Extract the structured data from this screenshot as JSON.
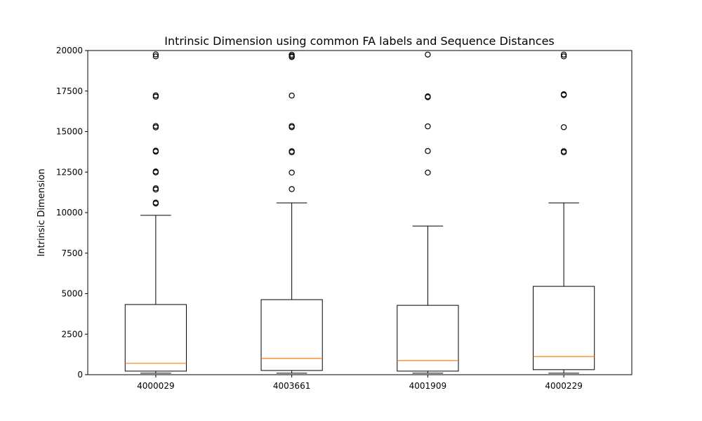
{
  "chart_data": {
    "type": "box",
    "title": "Intrinsic Dimension using common FA labels and Sequence Distances",
    "xlabel": "",
    "ylabel": "Intrinsic Dimension",
    "ylim": [
      0,
      20000
    ],
    "yticks": [
      0,
      2500,
      5000,
      7500,
      10000,
      12500,
      15000,
      17500,
      20000
    ],
    "grid": false,
    "categories": [
      "4000029",
      "4003661",
      "4001909",
      "4000229"
    ],
    "boxes": [
      {
        "whisker_low": 90,
        "q1": 220,
        "median": 700,
        "q3": 4330,
        "whisker_high": 9830,
        "outliers": [
          10560,
          10620,
          11420,
          11500,
          12480,
          12540,
          13760,
          13820,
          15260,
          15340,
          17150,
          17230,
          19640,
          19760
        ]
      },
      {
        "whisker_low": 90,
        "q1": 260,
        "median": 1000,
        "q3": 4630,
        "whisker_high": 10600,
        "outliers": [
          11450,
          12470,
          13720,
          13790,
          15270,
          15340,
          17220,
          19600,
          19660,
          19740
        ]
      },
      {
        "whisker_low": 90,
        "q1": 220,
        "median": 870,
        "q3": 4280,
        "whisker_high": 9170,
        "outliers": [
          12470,
          13800,
          15320,
          17120,
          17170,
          19750
        ]
      },
      {
        "whisker_low": 90,
        "q1": 310,
        "median": 1120,
        "q3": 5450,
        "whisker_high": 10600,
        "outliers": [
          13720,
          13790,
          15270,
          17250,
          17300,
          19640,
          19750
        ]
      }
    ],
    "colors": {
      "box": "#000000",
      "median": "#ff7f0e",
      "whisker": "#000000",
      "flier_edge": "#000000",
      "background": "#ffffff"
    }
  }
}
